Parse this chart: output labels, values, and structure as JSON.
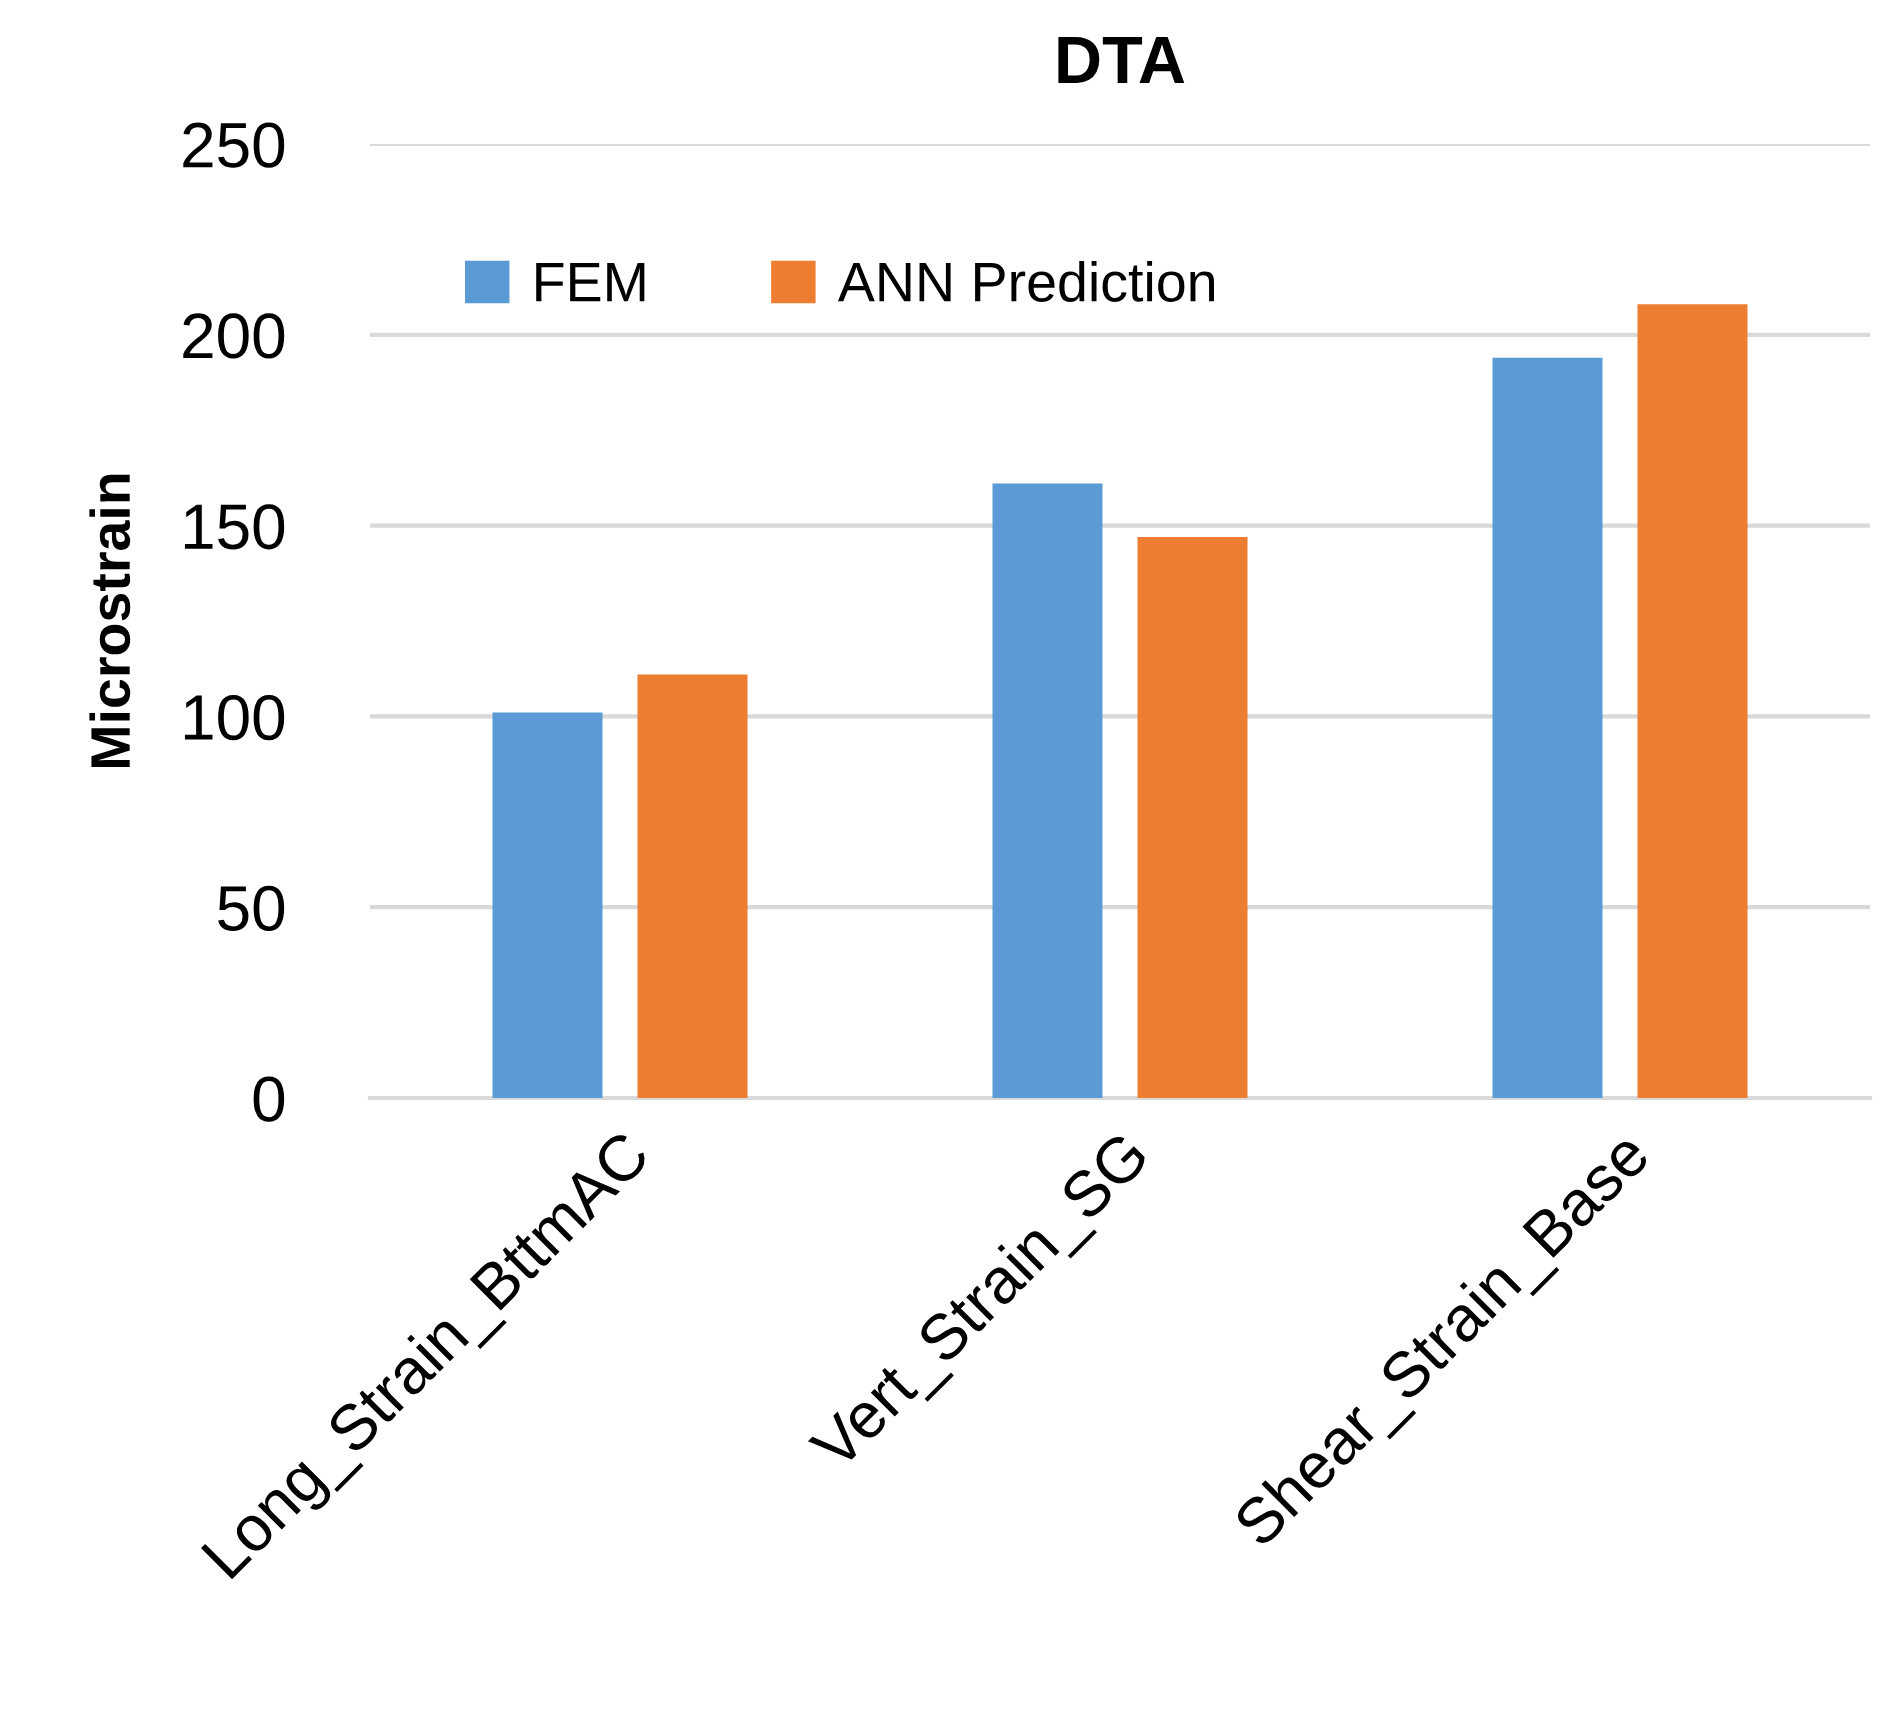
{
  "chart_data": {
    "type": "bar",
    "title": "DTA",
    "ylabel": "Microstrain",
    "categories": [
      "Long_Strain_BttmAC",
      "Vert_Strain_SG",
      "Shear_Strain_Base"
    ],
    "series": [
      {
        "name": "FEM",
        "color": "#5b9bd5",
        "values": [
          101,
          161,
          194
        ]
      },
      {
        "name": "ANN Prediction",
        "color": "#ed7d31",
        "values": [
          111,
          147,
          208
        ]
      }
    ],
    "ylim": [
      0,
      250
    ],
    "yticks": [
      0,
      50,
      100,
      150,
      200,
      250
    ],
    "grid": "y",
    "legend": "top left"
  }
}
